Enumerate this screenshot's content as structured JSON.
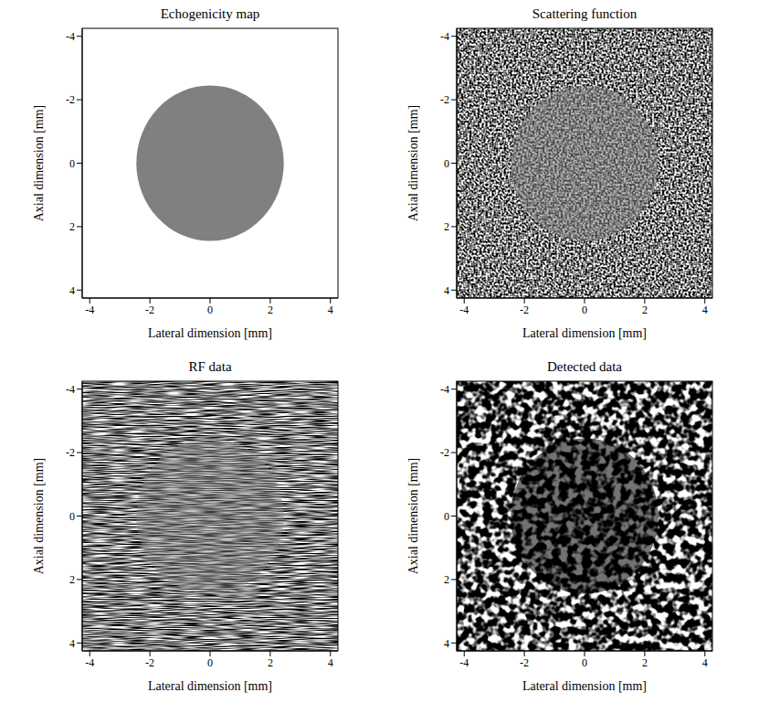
{
  "chart_data": [
    {
      "type": "mask",
      "title": "Echogenicity map",
      "x_label": "Lateral dimension [mm]",
      "y_label": "Axial dimension [mm]",
      "xlim": [
        -4.25,
        4.25
      ],
      "ylim": [
        -4.25,
        4.25
      ],
      "xticks": [
        -4,
        -2,
        0,
        2,
        4
      ],
      "yticks": [
        -4,
        -2,
        0,
        2,
        4
      ],
      "inclusion": {
        "center": [
          0,
          0
        ],
        "radius": 2.45
      },
      "color": "#808080"
    },
    {
      "type": "noise",
      "title": "Scattering function",
      "x_label": "Lateral dimension [mm]",
      "y_label": "Axial dimension [mm]",
      "xlim": [
        -4.25,
        4.25
      ],
      "ylim": [
        -4.25,
        4.25
      ],
      "xticks": [
        -4,
        -2,
        0,
        2,
        4
      ],
      "yticks": [
        -4,
        -2,
        0,
        2,
        4
      ],
      "inclusion": {
        "center": [
          0,
          0
        ],
        "radius": 2.45
      }
    },
    {
      "type": "rf",
      "title": "RF data",
      "x_label": "Lateral dimension [mm]",
      "y_label": "Axial dimension [mm]",
      "xlim": [
        -4.25,
        4.25
      ],
      "ylim": [
        -4.25,
        4.25
      ],
      "xticks": [
        -4,
        -2,
        0,
        2,
        4
      ],
      "yticks": [
        -4,
        -2,
        0,
        2,
        4
      ],
      "inclusion": {
        "center": [
          0,
          0
        ],
        "radius": 2.45
      }
    },
    {
      "type": "speckle",
      "title": "Detected data",
      "x_label": "Lateral dimension [mm]",
      "y_label": "Axial dimension [mm]",
      "xlim": [
        -4.25,
        4.25
      ],
      "ylim": [
        -4.25,
        4.25
      ],
      "xticks": [
        -4,
        -2,
        0,
        2,
        4
      ],
      "yticks": [
        -4,
        -2,
        0,
        2,
        4
      ],
      "inclusion": {
        "center": [
          0,
          0
        ],
        "radius": 2.45
      }
    }
  ]
}
